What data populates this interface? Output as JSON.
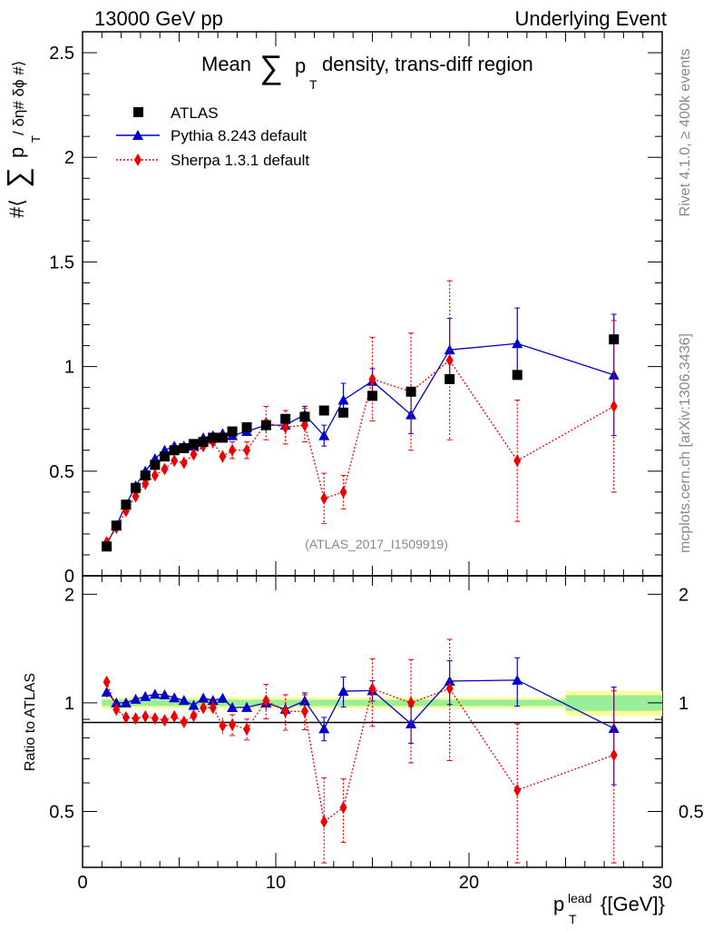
{
  "header": {
    "energy_label": "13000 GeV pp",
    "process_label": "Underlying Event"
  },
  "side": {
    "rivet_label": "Rivet 4.1.0, ≥ 400k events",
    "mcplots_label": "mcplots.cern.ch [arXiv:1306.3436]"
  },
  "chart_data": {
    "type": "scatter",
    "title": "Mean ∑ p_T density, trans-diff region",
    "title_parts": {
      "pre": "Mean",
      "sum": "∑",
      "p": "p",
      "sub": "T",
      "post": "density, trans-diff region"
    },
    "analysis_label": "(ATLAS_2017_I1509919)",
    "ylabel_parts": {
      "pre": "#⟨",
      "sum": "∑",
      "p": "p",
      "sub": "T",
      "post": "/ δη# δϕ #⟩"
    },
    "xlabel_parts": {
      "p": "p",
      "sup": "lead",
      "sub": "T",
      "unit": "{[GeV]}"
    },
    "ratio_ylabel": "Ratio to ATLAS",
    "xlim": [
      0,
      30
    ],
    "ylim": [
      0,
      2.6
    ],
    "ratio_ylim": [
      0.35,
      2.25
    ],
    "x_ticks": [
      0,
      10,
      20,
      30
    ],
    "x_tick_labels": [
      "0",
      "10",
      "20",
      "30"
    ],
    "y_ticks": [
      0,
      0.5,
      1,
      1.5,
      2,
      2.5
    ],
    "y_tick_labels": [
      "0",
      "0.5",
      "1",
      "1.5",
      "2",
      "2.5"
    ],
    "ratio_ticks": [
      0.5,
      1,
      2
    ],
    "ratio_tick_labels": [
      "0.5",
      "1",
      "2"
    ],
    "legend": [
      "ATLAS",
      "Pythia 8.243 default",
      "Sherpa 1.3.1 default"
    ],
    "legend_position": "top-left",
    "series": [
      {
        "name": "ATLAS",
        "color": "#000000",
        "marker": "square",
        "points": [
          {
            "x": 1.25,
            "y": 0.14
          },
          {
            "x": 1.75,
            "y": 0.24
          },
          {
            "x": 2.25,
            "y": 0.34
          },
          {
            "x": 2.75,
            "y": 0.42
          },
          {
            "x": 3.25,
            "y": 0.48
          },
          {
            "x": 3.75,
            "y": 0.53
          },
          {
            "x": 4.25,
            "y": 0.57
          },
          {
            "x": 4.75,
            "y": 0.6
          },
          {
            "x": 5.25,
            "y": 0.61
          },
          {
            "x": 5.75,
            "y": 0.63
          },
          {
            "x": 6.25,
            "y": 0.64
          },
          {
            "x": 6.75,
            "y": 0.66
          },
          {
            "x": 7.25,
            "y": 0.66
          },
          {
            "x": 7.75,
            "y": 0.69
          },
          {
            "x": 8.5,
            "y": 0.71
          },
          {
            "x": 9.5,
            "y": 0.72
          },
          {
            "x": 10.5,
            "y": 0.75
          },
          {
            "x": 11.5,
            "y": 0.76
          },
          {
            "x": 12.5,
            "y": 0.79
          },
          {
            "x": 13.5,
            "y": 0.78
          },
          {
            "x": 15.0,
            "y": 0.86
          },
          {
            "x": 17.0,
            "y": 0.88
          },
          {
            "x": 19.0,
            "y": 0.94
          },
          {
            "x": 22.5,
            "y": 0.96
          },
          {
            "x": 27.5,
            "y": 1.13
          }
        ]
      },
      {
        "name": "Pythia 8.243 default",
        "color": "#0000cc",
        "marker": "triangle",
        "points": [
          {
            "x": 1.25,
            "y": 0.15,
            "e": 0.005
          },
          {
            "x": 1.75,
            "y": 0.24,
            "e": 0.005
          },
          {
            "x": 2.25,
            "y": 0.34,
            "e": 0.005
          },
          {
            "x": 2.75,
            "y": 0.43,
            "e": 0.01
          },
          {
            "x": 3.25,
            "y": 0.5,
            "e": 0.01
          },
          {
            "x": 3.75,
            "y": 0.56,
            "e": 0.01
          },
          {
            "x": 4.25,
            "y": 0.6,
            "e": 0.01
          },
          {
            "x": 4.75,
            "y": 0.62,
            "e": 0.01
          },
          {
            "x": 5.25,
            "y": 0.62,
            "e": 0.01
          },
          {
            "x": 5.75,
            "y": 0.62,
            "e": 0.01
          },
          {
            "x": 6.25,
            "y": 0.66,
            "e": 0.02
          },
          {
            "x": 6.75,
            "y": 0.67,
            "e": 0.02
          },
          {
            "x": 7.25,
            "y": 0.68,
            "e": 0.02
          },
          {
            "x": 7.75,
            "y": 0.67,
            "e": 0.02
          },
          {
            "x": 8.5,
            "y": 0.69,
            "e": 0.02
          },
          {
            "x": 9.5,
            "y": 0.72,
            "e": 0.03
          },
          {
            "x": 10.5,
            "y": 0.72,
            "e": 0.03
          },
          {
            "x": 11.5,
            "y": 0.77,
            "e": 0.04
          },
          {
            "x": 12.5,
            "y": 0.67,
            "e": 0.05
          },
          {
            "x": 13.5,
            "y": 0.84,
            "e": 0.08
          },
          {
            "x": 15.0,
            "y": 0.93,
            "e": 0.06
          },
          {
            "x": 17.0,
            "y": 0.77,
            "e": 0.09
          },
          {
            "x": 19.0,
            "y": 1.08,
            "e": 0.15
          },
          {
            "x": 22.5,
            "y": 1.11,
            "e": 0.17
          },
          {
            "x": 27.5,
            "y": 0.96,
            "e": 0.29
          }
        ]
      },
      {
        "name": "Sherpa 1.3.1 default",
        "color": "#ee0000",
        "marker": "diamond",
        "points": [
          {
            "x": 1.25,
            "y": 0.16,
            "e": 0.005
          },
          {
            "x": 1.75,
            "y": 0.23,
            "e": 0.005
          },
          {
            "x": 2.25,
            "y": 0.31,
            "e": 0.01
          },
          {
            "x": 2.75,
            "y": 0.38,
            "e": 0.01
          },
          {
            "x": 3.25,
            "y": 0.44,
            "e": 0.01
          },
          {
            "x": 3.75,
            "y": 0.48,
            "e": 0.01
          },
          {
            "x": 4.25,
            "y": 0.51,
            "e": 0.01
          },
          {
            "x": 4.75,
            "y": 0.55,
            "e": 0.01
          },
          {
            "x": 5.25,
            "y": 0.54,
            "e": 0.02
          },
          {
            "x": 5.75,
            "y": 0.58,
            "e": 0.02
          },
          {
            "x": 6.25,
            "y": 0.62,
            "e": 0.02
          },
          {
            "x": 6.75,
            "y": 0.64,
            "e": 0.03
          },
          {
            "x": 7.25,
            "y": 0.57,
            "e": 0.03
          },
          {
            "x": 7.75,
            "y": 0.6,
            "e": 0.04
          },
          {
            "x": 8.5,
            "y": 0.6,
            "e": 0.04
          },
          {
            "x": 9.5,
            "y": 0.73,
            "e": 0.08
          },
          {
            "x": 10.5,
            "y": 0.71,
            "e": 0.08
          },
          {
            "x": 11.5,
            "y": 0.72,
            "e": 0.08
          },
          {
            "x": 12.5,
            "y": 0.37,
            "e": 0.12
          },
          {
            "x": 13.5,
            "y": 0.4,
            "e": 0.08
          },
          {
            "x": 15.0,
            "y": 0.94,
            "e": 0.2
          },
          {
            "x": 17.0,
            "y": 0.88,
            "e": 0.28
          },
          {
            "x": 19.0,
            "y": 1.03,
            "e": 0.38
          },
          {
            "x": 22.5,
            "y": 0.55,
            "e": 0.29
          },
          {
            "x": 27.5,
            "y": 0.81,
            "e": 0.41
          }
        ]
      }
    ],
    "ratio_band": [
      {
        "x0": 1.0,
        "x1": 25.0,
        "inner": 0.02,
        "outer": 0.035
      },
      {
        "x0": 25.0,
        "x1": 30.0,
        "inner": 0.05,
        "outer": 0.08
      }
    ]
  }
}
